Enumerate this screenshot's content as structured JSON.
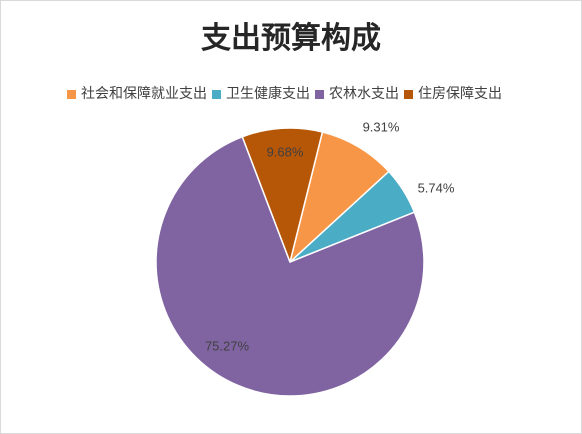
{
  "chart_data": {
    "type": "pie",
    "title": "支出预算构成",
    "categories": [
      "社会和保障就业支出",
      "卫生健康支出",
      "农林水支出",
      "住房保障支出"
    ],
    "values": [
      9.31,
      5.74,
      75.27,
      9.68
    ],
    "labels": [
      "9.31%",
      "5.74%",
      "75.27%",
      "9.68%"
    ],
    "colors": [
      "#F79646",
      "#4BACC6",
      "#8064A2",
      "#B65708"
    ],
    "legend_position": "top"
  }
}
